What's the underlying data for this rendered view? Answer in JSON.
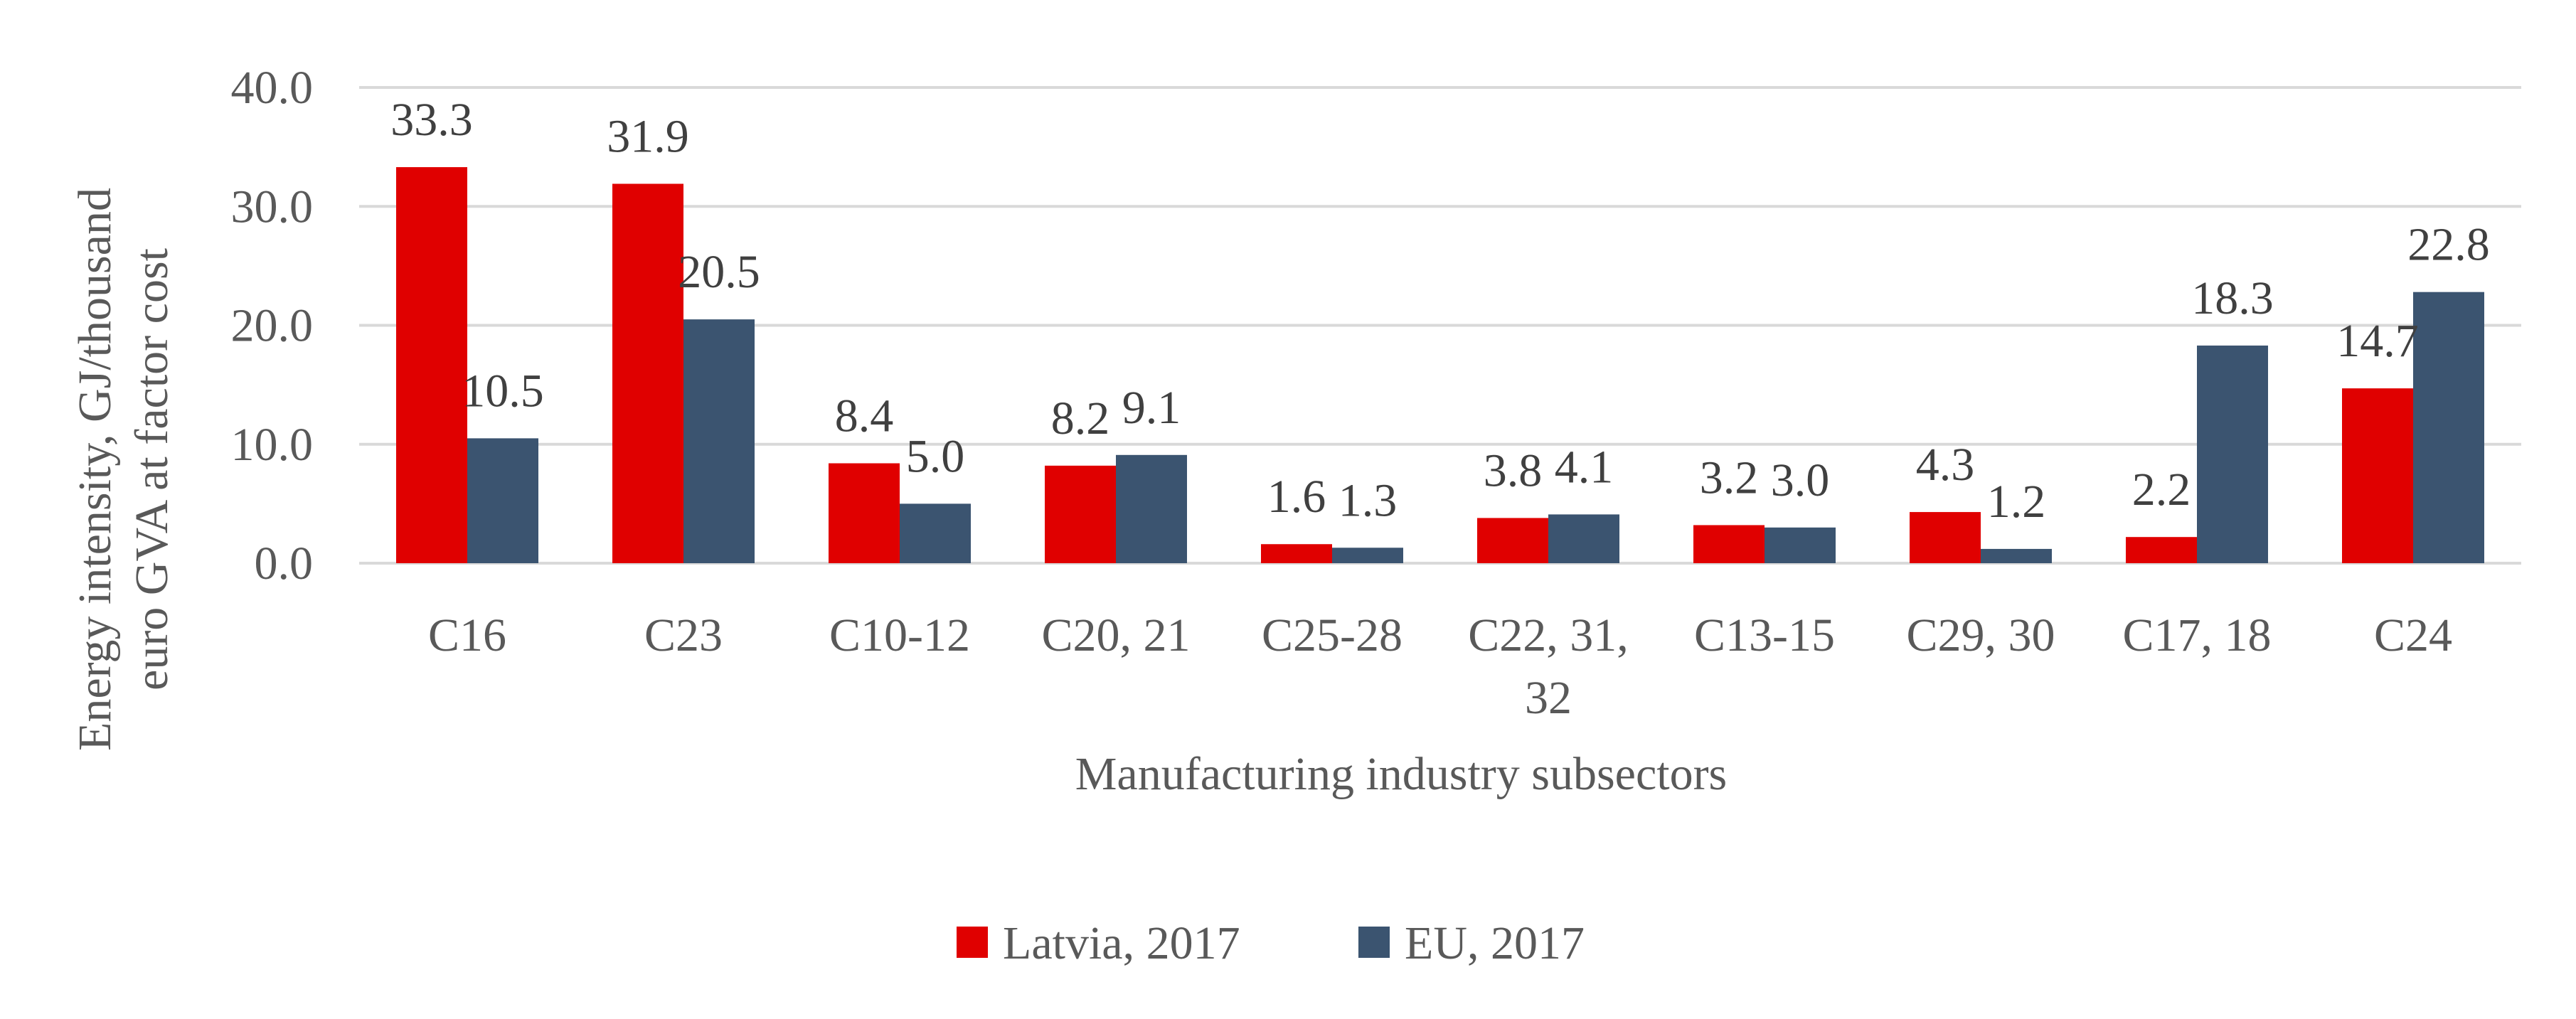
{
  "chart_data": {
    "type": "bar",
    "ylabel": "Energy intensity, GJ/thousand euro GVA at factor cost",
    "xlabel": "Manufacturing industry subsectors",
    "categories": [
      [
        "C16"
      ],
      [
        "C23"
      ],
      [
        "C10-12"
      ],
      [
        "C20, 21"
      ],
      [
        "C25-28"
      ],
      [
        "C22, 31,",
        "32"
      ],
      [
        "C13-15"
      ],
      [
        "C29, 30"
      ],
      [
        "C17, 18"
      ],
      [
        "C24"
      ]
    ],
    "series": [
      {
        "name": "Latvia, 2017",
        "color": "#e00000",
        "values": [
          33.3,
          31.9,
          8.4,
          8.2,
          1.6,
          3.8,
          3.2,
          4.3,
          2.2,
          14.7
        ]
      },
      {
        "name": "EU, 2017",
        "color": "#3b5470",
        "values": [
          10.5,
          20.5,
          5.0,
          9.1,
          1.3,
          4.1,
          3.0,
          1.2,
          18.3,
          22.8
        ]
      }
    ],
    "ylim": [
      0,
      40
    ],
    "yticks": [
      "0.0",
      "10.0",
      "20.0",
      "30.0",
      "40.0"
    ],
    "grid": true,
    "legend_position": "bottom"
  }
}
